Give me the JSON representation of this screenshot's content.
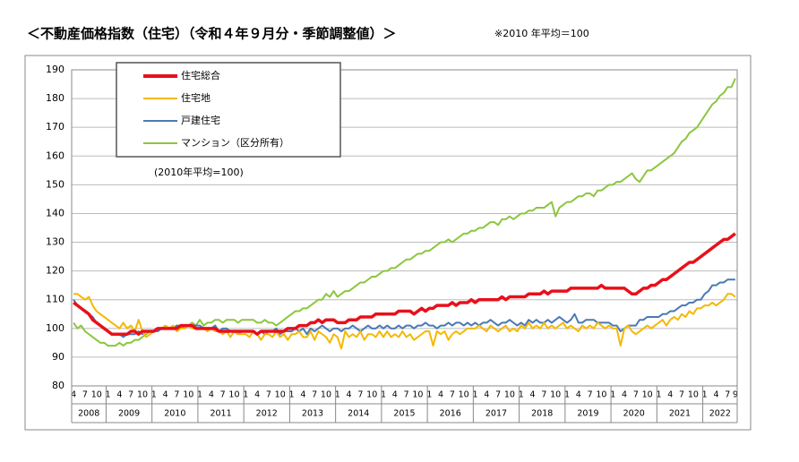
{
  "chart_data": {
    "type": "line",
    "title": "＜不動産価格指数（住宅）（令和４年９月分・季節調整値）＞",
    "subtitle": "※2010 年平均＝100",
    "annotation": "(2010年平均=100)",
    "x": [
      "2008-04",
      "2008-05",
      "2008-06",
      "2008-07",
      "2008-08",
      "2008-09",
      "2008-10",
      "2008-11",
      "2008-12",
      "2009-01",
      "2009-02",
      "2009-03",
      "2009-04",
      "2009-05",
      "2009-06",
      "2009-07",
      "2009-08",
      "2009-09",
      "2009-10",
      "2009-11",
      "2009-12",
      "2010-01",
      "2010-02",
      "2010-03",
      "2010-04",
      "2010-05",
      "2010-06",
      "2010-07",
      "2010-08",
      "2010-09",
      "2010-10",
      "2010-11",
      "2010-12",
      "2011-01",
      "2011-02",
      "2011-03",
      "2011-04",
      "2011-05",
      "2011-06",
      "2011-07",
      "2011-08",
      "2011-09",
      "2011-10",
      "2011-11",
      "2011-12",
      "2012-01",
      "2012-02",
      "2012-03",
      "2012-04",
      "2012-05",
      "2012-06",
      "2012-07",
      "2012-08",
      "2012-09",
      "2012-10",
      "2012-11",
      "2012-12",
      "2013-01",
      "2013-02",
      "2013-03",
      "2013-04",
      "2013-05",
      "2013-06",
      "2013-07",
      "2013-08",
      "2013-09",
      "2013-10",
      "2013-11",
      "2013-12",
      "2014-01",
      "2014-02",
      "2014-03",
      "2014-04",
      "2014-05",
      "2014-06",
      "2014-07",
      "2014-08",
      "2014-09",
      "2014-10",
      "2014-11",
      "2014-12",
      "2015-01",
      "2015-02",
      "2015-03",
      "2015-04",
      "2015-05",
      "2015-06",
      "2015-07",
      "2015-08",
      "2015-09",
      "2015-10",
      "2015-11",
      "2015-12",
      "2016-01",
      "2016-02",
      "2016-03",
      "2016-04",
      "2016-05",
      "2016-06",
      "2016-07",
      "2016-08",
      "2016-09",
      "2016-10",
      "2016-11",
      "2016-12",
      "2017-01",
      "2017-02",
      "2017-03",
      "2017-04",
      "2017-05",
      "2017-06",
      "2017-07",
      "2017-08",
      "2017-09",
      "2017-10",
      "2017-11",
      "2017-12",
      "2018-01",
      "2018-02",
      "2018-03",
      "2018-04",
      "2018-05",
      "2018-06",
      "2018-07",
      "2018-08",
      "2018-09",
      "2018-10",
      "2018-11",
      "2018-12",
      "2019-01",
      "2019-02",
      "2019-03",
      "2019-04",
      "2019-05",
      "2019-06",
      "2019-07",
      "2019-08",
      "2019-09",
      "2019-10",
      "2019-11",
      "2019-12",
      "2020-01",
      "2020-02",
      "2020-03",
      "2020-04",
      "2020-05",
      "2020-06",
      "2020-07",
      "2020-08",
      "2020-09",
      "2020-10",
      "2020-11",
      "2020-12",
      "2021-01",
      "2021-02",
      "2021-03",
      "2021-04",
      "2021-05",
      "2021-06",
      "2021-07",
      "2021-08",
      "2021-09",
      "2021-10",
      "2021-11",
      "2021-12",
      "2022-01",
      "2022-02",
      "2022-03",
      "2022-04",
      "2022-05",
      "2022-06",
      "2022-07",
      "2022-08",
      "2022-09"
    ],
    "month_ticks": [
      {
        "value": "2008-04",
        "label": "4"
      },
      {
        "value": "2008-07",
        "label": "7"
      },
      {
        "value": "2008-10",
        "label": "10"
      },
      {
        "value": "2009-01",
        "label": "1"
      },
      {
        "value": "2009-04",
        "label": "4"
      },
      {
        "value": "2009-07",
        "label": "7"
      },
      {
        "value": "2009-10",
        "label": "10"
      },
      {
        "value": "2010-01",
        "label": "1"
      },
      {
        "value": "2010-04",
        "label": "4"
      },
      {
        "value": "2010-07",
        "label": "7"
      },
      {
        "value": "2010-10",
        "label": "10"
      },
      {
        "value": "2011-01",
        "label": "1"
      },
      {
        "value": "2011-04",
        "label": "4"
      },
      {
        "value": "2011-07",
        "label": "7"
      },
      {
        "value": "2011-10",
        "label": "10"
      },
      {
        "value": "2012-01",
        "label": "1"
      },
      {
        "value": "2012-04",
        "label": "4"
      },
      {
        "value": "2012-07",
        "label": "7"
      },
      {
        "value": "2012-10",
        "label": "10"
      },
      {
        "value": "2013-01",
        "label": "1"
      },
      {
        "value": "2013-04",
        "label": "4"
      },
      {
        "value": "2013-07",
        "label": "7"
      },
      {
        "value": "2013-10",
        "label": "10"
      },
      {
        "value": "2014-01",
        "label": "1"
      },
      {
        "value": "2014-04",
        "label": "4"
      },
      {
        "value": "2014-07",
        "label": "7"
      },
      {
        "value": "2014-10",
        "label": "10"
      },
      {
        "value": "2015-01",
        "label": "1"
      },
      {
        "value": "2015-04",
        "label": "4"
      },
      {
        "value": "2015-07",
        "label": "7"
      },
      {
        "value": "2015-10",
        "label": "10"
      },
      {
        "value": "2016-01",
        "label": "1"
      },
      {
        "value": "2016-04",
        "label": "4"
      },
      {
        "value": "2016-07",
        "label": "7"
      },
      {
        "value": "2016-10",
        "label": "10"
      },
      {
        "value": "2017-01",
        "label": "1"
      },
      {
        "value": "2017-04",
        "label": "4"
      },
      {
        "value": "2017-07",
        "label": "7"
      },
      {
        "value": "2017-10",
        "label": "10"
      },
      {
        "value": "2018-01",
        "label": "1"
      },
      {
        "value": "2018-04",
        "label": "4"
      },
      {
        "value": "2018-07",
        "label": "7"
      },
      {
        "value": "2018-10",
        "label": "10"
      },
      {
        "value": "2019-01",
        "label": "1"
      },
      {
        "value": "2019-04",
        "label": "4"
      },
      {
        "value": "2019-07",
        "label": "7"
      },
      {
        "value": "2019-10",
        "label": "10"
      },
      {
        "value": "2020-01",
        "label": "1"
      },
      {
        "value": "2020-04",
        "label": "4"
      },
      {
        "value": "2020-07",
        "label": "7"
      },
      {
        "value": "2020-10",
        "label": "10"
      },
      {
        "value": "2021-01",
        "label": "1"
      },
      {
        "value": "2021-04",
        "label": "4"
      },
      {
        "value": "2021-07",
        "label": "7"
      },
      {
        "value": "2021-10",
        "label": "10"
      },
      {
        "value": "2022-01",
        "label": "1"
      },
      {
        "value": "2022-04",
        "label": "4"
      },
      {
        "value": "2022-07",
        "label": "7"
      },
      {
        "value": "2022-09",
        "label": "9"
      }
    ],
    "years": [
      "2008",
      "2009",
      "2010",
      "2011",
      "2012",
      "2013",
      "2014",
      "2015",
      "2016",
      "2017",
      "2018",
      "2019",
      "2020",
      "2021",
      "2022"
    ],
    "ylim": [
      80,
      190
    ],
    "yticks": [
      80,
      90,
      100,
      110,
      120,
      130,
      140,
      150,
      160,
      170,
      180,
      190
    ],
    "grid": true,
    "series": [
      {
        "name": "住宅総合",
        "color": "#e8101a",
        "values": [
          109,
          108,
          107,
          106,
          105,
          103,
          102,
          101,
          100,
          99,
          98,
          98,
          98,
          98,
          98,
          99,
          99,
          98,
          99,
          99,
          99,
          99,
          100,
          100,
          100,
          100,
          100,
          100,
          101,
          101,
          101,
          101,
          100,
          100,
          100,
          100,
          100,
          100,
          99,
          99,
          99,
          99,
          99,
          99,
          99,
          99,
          99,
          99,
          98,
          99,
          99,
          99,
          99,
          99,
          99,
          99,
          100,
          100,
          100,
          101,
          101,
          101,
          102,
          102,
          103,
          102,
          103,
          103,
          103,
          102,
          102,
          102,
          103,
          103,
          103,
          104,
          104,
          104,
          104,
          105,
          105,
          105,
          105,
          105,
          105,
          106,
          106,
          106,
          106,
          105,
          106,
          107,
          106,
          107,
          107,
          108,
          108,
          108,
          108,
          109,
          108,
          109,
          109,
          109,
          110,
          109,
          110,
          110,
          110,
          110,
          110,
          110,
          111,
          110,
          111,
          111,
          111,
          111,
          111,
          112,
          112,
          112,
          112,
          113,
          112,
          113,
          113,
          113,
          113,
          113,
          114,
          114,
          114,
          114,
          114,
          114,
          114,
          114,
          115,
          114,
          114,
          114,
          114,
          114,
          114,
          113,
          112,
          112,
          113,
          114,
          114,
          115,
          115,
          116,
          117,
          117,
          118,
          119,
          120,
          121,
          122,
          123,
          123,
          124,
          125,
          126,
          127,
          128,
          129,
          130,
          131,
          131,
          132,
          133
        ]
      },
      {
        "name": "住宅地",
        "color": "#f5b800",
        "values": [
          112,
          112,
          111,
          110,
          111,
          108,
          106,
          105,
          104,
          103,
          102,
          101,
          100,
          102,
          100,
          101,
          99,
          103,
          99,
          97,
          98,
          99,
          100,
          100,
          101,
          100,
          101,
          99,
          100,
          100,
          101,
          100,
          100,
          100,
          100,
          99,
          100,
          99,
          99,
          98,
          99,
          97,
          99,
          98,
          98,
          98,
          97,
          99,
          98,
          96,
          98,
          98,
          97,
          99,
          97,
          98,
          96,
          98,
          98,
          99,
          97,
          97,
          99,
          96,
          99,
          98,
          97,
          95,
          98,
          97,
          93,
          99,
          97,
          98,
          97,
          99,
          96,
          98,
          98,
          97,
          99,
          97,
          99,
          97,
          98,
          97,
          99,
          97,
          98,
          96,
          97,
          98,
          99,
          99,
          94,
          99,
          98,
          99,
          96,
          98,
          99,
          98,
          99,
          100,
          100,
          100,
          101,
          100,
          99,
          101,
          100,
          99,
          100,
          101,
          99,
          100,
          99,
          101,
          100,
          102,
          100,
          101,
          100,
          102,
          100,
          101,
          100,
          101,
          102,
          100,
          101,
          100,
          99,
          101,
          100,
          101,
          100,
          102,
          101,
          100,
          101,
          100,
          100,
          94,
          100,
          101,
          99,
          98,
          99,
          100,
          101,
          100,
          101,
          102,
          103,
          101,
          103,
          104,
          103,
          105,
          104,
          106,
          105,
          107,
          107,
          108,
          108,
          109,
          108,
          109,
          110,
          112,
          112,
          111
        ]
      },
      {
        "name": "戸建住宅",
        "color": "#4a7ab5",
        "values": [
          110,
          108,
          107,
          106,
          105,
          104,
          102,
          101,
          100,
          99,
          98,
          98,
          98,
          97,
          98,
          98,
          98,
          99,
          98,
          99,
          99,
          99,
          99,
          100,
          100,
          100,
          100,
          101,
          100,
          101,
          101,
          101,
          101,
          101,
          100,
          100,
          100,
          101,
          99,
          100,
          100,
          99,
          99,
          98,
          99,
          99,
          99,
          99,
          98,
          99,
          98,
          99,
          99,
          100,
          98,
          99,
          99,
          99,
          100,
          99,
          100,
          98,
          100,
          99,
          100,
          101,
          100,
          99,
          100,
          100,
          99,
          100,
          100,
          101,
          100,
          99,
          100,
          101,
          100,
          100,
          101,
          100,
          101,
          100,
          100,
          101,
          100,
          101,
          101,
          100,
          101,
          101,
          102,
          101,
          101,
          100,
          101,
          101,
          102,
          101,
          102,
          102,
          101,
          102,
          101,
          102,
          101,
          102,
          102,
          103,
          102,
          101,
          102,
          102,
          103,
          102,
          101,
          102,
          101,
          103,
          102,
          103,
          102,
          102,
          103,
          102,
          103,
          104,
          103,
          102,
          103,
          105,
          102,
          102,
          103,
          103,
          103,
          102,
          102,
          102,
          102,
          101,
          101,
          99,
          100,
          101,
          101,
          101,
          103,
          103,
          104,
          104,
          104,
          104,
          105,
          105,
          106,
          106,
          107,
          108,
          108,
          109,
          109,
          110,
          110,
          112,
          113,
          115,
          115,
          116,
          116,
          117,
          117,
          117
        ]
      },
      {
        "name": "マンション（区分所有）",
        "color": "#8cc63f",
        "values": [
          102,
          100,
          101,
          99,
          98,
          97,
          96,
          95,
          95,
          94,
          94,
          94,
          95,
          94,
          95,
          95,
          96,
          96,
          97,
          98,
          99,
          99,
          99,
          100,
          100,
          100,
          100,
          101,
          101,
          100,
          101,
          102,
          101,
          103,
          101,
          102,
          102,
          103,
          103,
          102,
          103,
          103,
          103,
          102,
          103,
          103,
          103,
          103,
          102,
          102,
          103,
          102,
          102,
          101,
          102,
          103,
          104,
          105,
          106,
          106,
          107,
          107,
          108,
          109,
          110,
          110,
          112,
          111,
          113,
          111,
          112,
          113,
          113,
          114,
          115,
          116,
          116,
          117,
          118,
          118,
          119,
          120,
          120,
          121,
          121,
          122,
          123,
          124,
          124,
          125,
          126,
          126,
          127,
          127,
          128,
          129,
          130,
          130,
          131,
          130,
          131,
          132,
          133,
          133,
          134,
          134,
          135,
          135,
          136,
          137,
          137,
          136,
          138,
          138,
          139,
          138,
          139,
          140,
          140,
          141,
          141,
          142,
          142,
          142,
          143,
          144,
          139,
          142,
          143,
          144,
          144,
          145,
          146,
          146,
          147,
          147,
          146,
          148,
          148,
          149,
          150,
          150,
          151,
          151,
          152,
          153,
          154,
          152,
          151,
          153,
          155,
          155,
          156,
          157,
          158,
          159,
          160,
          161,
          163,
          165,
          166,
          168,
          169,
          170,
          172,
          174,
          176,
          178,
          179,
          181,
          182,
          184,
          184,
          187
        ]
      }
    ]
  }
}
